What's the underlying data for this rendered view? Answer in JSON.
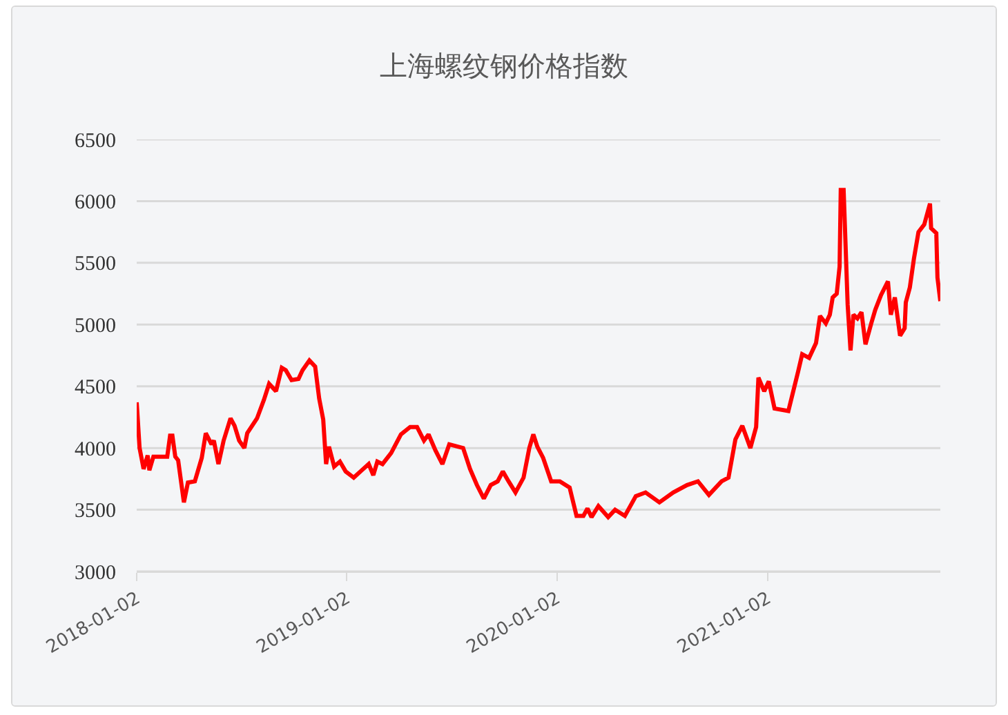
{
  "chart_data": {
    "type": "line",
    "title": "上海螺纹钢价格指数",
    "xlim": [
      "2018-01-02",
      "2021-10-29"
    ],
    "xticks": [
      "2018-01-02",
      "2019-01-02",
      "2020-01-02",
      "2021-01-02"
    ],
    "ylim": [
      3000,
      6500
    ],
    "yticks": [
      3000,
      3500,
      4000,
      4500,
      5000,
      5500,
      6000,
      6500
    ],
    "grid": "y",
    "marker": "none",
    "line_style": "solid",
    "series": [
      {
        "color": "#ff0000",
        "x": [
          "2018-01-02",
          "2018-01-07",
          "2018-01-14",
          "2018-01-21",
          "2018-01-24",
          "2018-01-31",
          "2018-02-24",
          "2018-03-01",
          "2018-03-05",
          "2018-03-10",
          "2018-03-15",
          "2018-03-25",
          "2018-04-01",
          "2018-04-13",
          "2018-04-25",
          "2018-05-02",
          "2018-05-12",
          "2018-05-16",
          "2018-05-24",
          "2018-06-02",
          "2018-06-14",
          "2018-06-21",
          "2018-06-29",
          "2018-07-08",
          "2018-07-13",
          "2018-07-30",
          "2018-08-11",
          "2018-08-20",
          "2018-09-01",
          "2018-09-11",
          "2018-09-18",
          "2018-09-28",
          "2018-10-10",
          "2018-10-17",
          "2018-10-29",
          "2018-11-08",
          "2018-11-15",
          "2018-11-22",
          "2018-11-27",
          "2018-12-02",
          "2018-12-11",
          "2018-12-21",
          "2018-12-31",
          "2019-01-14",
          "2019-01-28",
          "2019-02-09",
          "2019-02-17",
          "2019-02-24",
          "2019-03-05",
          "2019-03-20",
          "2019-04-06",
          "2019-04-22",
          "2019-05-04",
          "2019-05-16",
          "2019-05-24",
          "2019-06-05",
          "2019-06-17",
          "2019-06-29",
          "2019-07-23",
          "2019-08-04",
          "2019-08-16",
          "2019-08-28",
          "2019-09-09",
          "2019-09-21",
          "2019-09-30",
          "2019-10-10",
          "2019-10-22",
          "2019-11-05",
          "2019-11-15",
          "2019-11-22",
          "2019-11-29",
          "2019-12-09",
          "2019-12-23",
          "2020-01-07",
          "2020-01-24",
          "2020-02-05",
          "2020-02-17",
          "2020-02-24",
          "2020-03-02",
          "2020-03-14",
          "2020-03-31",
          "2020-04-12",
          "2020-04-29",
          "2020-05-18",
          "2020-06-04",
          "2020-06-28",
          "2020-07-22",
          "2020-08-15",
          "2020-09-03",
          "2020-09-22",
          "2020-10-14",
          "2020-10-26",
          "2020-11-07",
          "2020-11-19",
          "2020-12-03",
          "2020-12-13",
          "2020-12-17",
          "2020-12-27",
          "2021-01-04",
          "2021-01-14",
          "2021-02-07",
          "2021-02-24",
          "2021-03-03",
          "2021-03-15",
          "2021-03-27",
          "2021-04-03",
          "2021-04-13",
          "2021-04-20",
          "2021-04-25",
          "2021-05-02",
          "2021-05-07",
          "2021-05-09",
          "2021-05-14",
          "2021-05-21",
          "2021-05-26",
          "2021-05-31",
          "2021-06-07",
          "2021-06-14",
          "2021-06-21",
          "2021-07-01",
          "2021-07-08",
          "2021-07-18",
          "2021-07-30",
          "2021-08-04",
          "2021-08-11",
          "2021-08-20",
          "2021-08-28",
          "2021-08-30",
          "2021-09-06",
          "2021-09-13",
          "2021-09-21",
          "2021-10-01",
          "2021-10-11",
          "2021-10-13",
          "2021-10-22",
          "2021-10-24",
          "2021-10-29"
        ],
        "values": [
          4370,
          4000,
          3830,
          3940,
          3820,
          3930,
          3930,
          4100,
          4100,
          3930,
          3900,
          3560,
          3720,
          3730,
          3920,
          4120,
          4030,
          4060,
          3870,
          4060,
          4240,
          4180,
          4060,
          4000,
          4120,
          4240,
          4390,
          4520,
          4460,
          4650,
          4630,
          4550,
          4560,
          4630,
          4710,
          4660,
          4400,
          4230,
          3870,
          4010,
          3850,
          3890,
          3810,
          3760,
          3820,
          3870,
          3780,
          3890,
          3870,
          3960,
          4110,
          4170,
          4170,
          4060,
          4110,
          3980,
          3870,
          4030,
          4000,
          3830,
          3700,
          3590,
          3700,
          3730,
          3810,
          3730,
          3640,
          3760,
          4000,
          4110,
          4010,
          3920,
          3730,
          3730,
          3680,
          3450,
          3450,
          3510,
          3440,
          3530,
          3440,
          3500,
          3450,
          3610,
          3640,
          3560,
          3640,
          3700,
          3730,
          3620,
          3730,
          3760,
          4070,
          4180,
          4000,
          4170,
          4570,
          4460,
          4540,
          4320,
          4300,
          4620,
          4760,
          4730,
          4850,
          5070,
          5010,
          5080,
          5220,
          5250,
          5470,
          6090,
          6090,
          5160,
          4790,
          5080,
          5050,
          5100,
          4840,
          5010,
          5120,
          5240,
          5350,
          5080,
          5220,
          4910,
          4970,
          5180,
          5300,
          5530,
          5750,
          5810,
          5980,
          5780,
          5740,
          5380,
          5190
        ]
      }
    ]
  }
}
